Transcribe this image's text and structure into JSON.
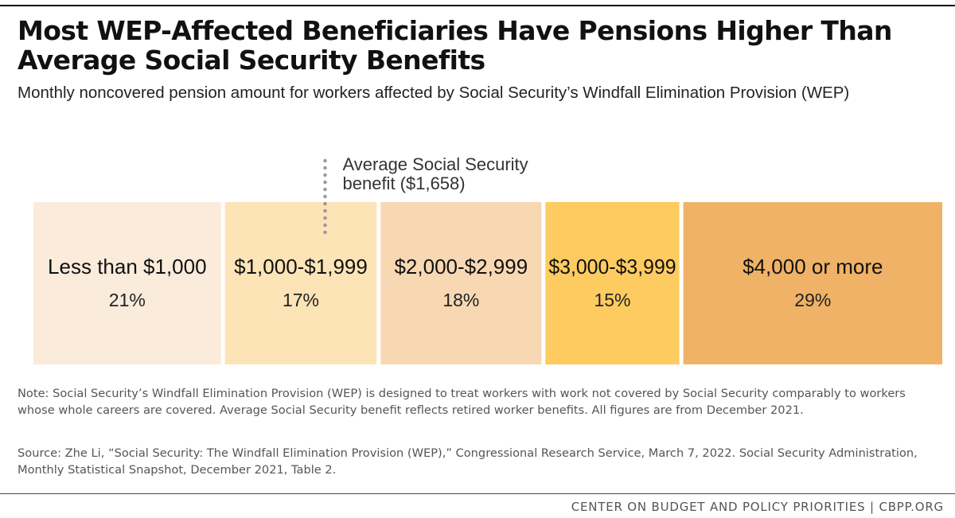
{
  "title": "Most WEP-Affected Beneficiaries Have Pensions Higher Than Average Social Security Benefits",
  "subtitle": "Monthly noncovered pension amount for workers affected by Social Security’s Windfall Elimination Provision (WEP)",
  "chart_data": {
    "type": "bar",
    "orientation": "horizontal-stacked",
    "categories": [
      "Less than $1,000",
      "$1,000-$1,999",
      "$2,000-$2,999",
      "$3,000-$3,999",
      "$4,000 or more"
    ],
    "values": [
      21,
      17,
      18,
      15,
      29
    ],
    "value_labels": [
      "21%",
      "17%",
      "18%",
      "15%",
      "29%"
    ],
    "colors": [
      "#fbebdb",
      "#fde4b7",
      "#f8d7b3",
      "#fdcb5f",
      "#f0b266"
    ],
    "annotation": {
      "label_line1": "Average Social Security",
      "label_line2": "benefit ($1,658)",
      "category_index": 1,
      "fraction_within_category": 0.66
    },
    "xlim": [
      0,
      100
    ]
  },
  "note": "Note: Social Security’s Windfall Elimination Provision (WEP) is designed to treat workers with work not covered by Social Security comparably to workers whose whole careers are covered. Average Social Security benefit reflects retired worker benefits. All figures are from December 2021.",
  "source": "Source: Zhe Li, “Social Security: The Windfall Elimination Provision (WEP),” Congressional Research Service, March 7, 2022. Social Security Administration, Monthly Statistical Snapshot, December 2021, Table 2.",
  "footer": "CENTER ON BUDGET AND POLICY PRIORITIES | CBPP.ORG"
}
